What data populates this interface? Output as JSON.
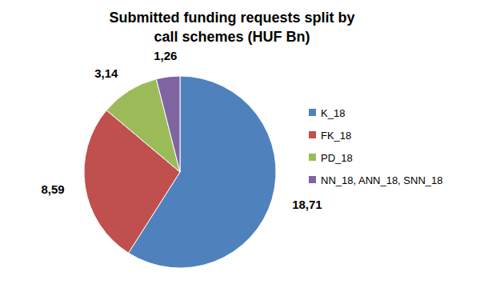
{
  "chart_data": {
    "type": "pie",
    "title": "Submitted funding requests split by call schemes (HUF Bn)",
    "categories": [
      "K_18",
      "FK_18",
      "PD_18",
      "NN_18, ANN_18, SNN_18"
    ],
    "values": [
      18.71,
      8.59,
      3.14,
      1.26
    ],
    "value_labels": [
      "18,71",
      "8,59",
      "3,14",
      "1,26"
    ],
    "colors": [
      "#4f81bd",
      "#c0504d",
      "#9bbb59",
      "#8064a2"
    ],
    "legend": "right",
    "data_labels": true
  }
}
